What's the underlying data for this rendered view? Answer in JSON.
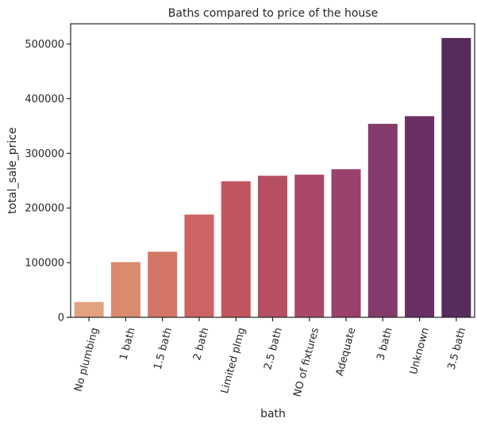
{
  "chart_data": {
    "type": "bar",
    "title": "Baths compared to price of the house",
    "xlabel": "bath",
    "ylabel": "total_sale_price",
    "categories": [
      "No plumbing",
      "1 bath",
      "1.5 bath",
      "2 bath",
      "Limited plmg",
      "2.5 bath",
      "NO of fixtures",
      "Adequate",
      "3 bath",
      "Unknown",
      "3.5 bath"
    ],
    "values": [
      28000,
      101000,
      120000,
      188000,
      249000,
      259000,
      261000,
      271000,
      354000,
      368000,
      511000
    ],
    "ylim": [
      0,
      537000
    ],
    "yticks": [
      0,
      100000,
      200000,
      300000,
      400000,
      500000
    ],
    "colors": [
      "#e2a17f",
      "#da8a6d",
      "#d47667",
      "#cd6362",
      "#c2555f",
      "#b64f61",
      "#a8476a",
      "#9a416e",
      "#843a6b",
      "#6a2f63",
      "#572b5c"
    ],
    "grid": false,
    "legend": "none"
  }
}
